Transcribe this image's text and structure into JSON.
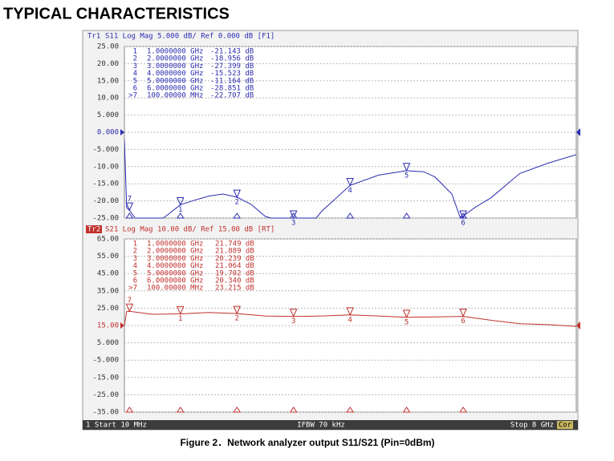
{
  "title": "TYPICAL CHARACTERISTICS",
  "caption": "Figure 2．Network analyzer output S11/S21 (Pin=0dBm)",
  "status": {
    "start": "1 Start 10 MHz",
    "ifbw": "IFBW 70 kHz",
    "stop": "Stop 8 GHz",
    "cor": "Cor"
  },
  "chart_data": [
    {
      "type": "line",
      "trace": "Tr1",
      "header": "S11 Log Mag 5.000 dB/ Ref 0.000 dB [F1]",
      "color": "#2b2bb0",
      "ref": 0,
      "xlim": [
        0.01,
        8
      ],
      "ylim": [
        -25,
        25
      ],
      "yticks": [
        {
          "value": 25,
          "label": "25.00"
        },
        {
          "value": 20,
          "label": "20.00"
        },
        {
          "value": 15,
          "label": "15.00"
        },
        {
          "value": 10,
          "label": "10.00"
        },
        {
          "value": 5,
          "label": "5.000"
        },
        {
          "value": 0,
          "label": "0.000"
        },
        {
          "value": -5,
          "label": "-5.000"
        },
        {
          "value": -10,
          "label": "-10.00"
        },
        {
          "value": -15,
          "label": "-15.00"
        },
        {
          "value": -20,
          "label": "-20.00"
        },
        {
          "value": -25,
          "label": "-25.00"
        }
      ],
      "x": [
        0.01,
        0.05,
        0.1,
        0.2,
        0.5,
        0.7,
        1.0,
        1.25,
        1.5,
        1.75,
        2.0,
        2.25,
        2.5,
        2.6,
        3.0,
        3.4,
        3.5,
        4.0,
        4.5,
        5.0,
        5.3,
        5.5,
        5.8,
        5.95,
        6.2,
        6.5,
        7.0,
        7.5,
        8.0
      ],
      "series": [
        {
          "values": [
            -2,
            -22,
            -22.7,
            -25,
            -25,
            -25,
            -21.1,
            -19.8,
            -18.6,
            -18,
            -18.9,
            -21,
            -24.5,
            -25,
            -25,
            -25,
            -23,
            -15.5,
            -12.5,
            -11.2,
            -11.5,
            -13,
            -18,
            -25,
            -22,
            -19,
            -12,
            -9,
            -6.5
          ]
        }
      ],
      "markers": {
        "names": [
          "1",
          "2",
          "3",
          "4",
          "5",
          "6",
          ">7"
        ],
        "tags": [
          "1",
          "2",
          "3",
          "4",
          "5",
          "6",
          "7"
        ],
        "x": [
          1,
          2,
          3,
          4,
          5,
          6,
          0.1
        ],
        "x_labels": [
          "1.0000000 GHz",
          "2.0000000 GHz",
          "3.0000000 GHz",
          "4.0000000 GHz",
          "5.0000000 GHz",
          "6.0000000 GHz",
          "100.00000 MHz"
        ],
        "values": [
          -21.143,
          -18.956,
          -27.399,
          -15.523,
          -11.164,
          -28.851,
          -22.707
        ],
        "value_labels": [
          "-21.143 dB",
          "-18.956 dB",
          "-27.399 dB",
          "-15.523 dB",
          "-11.164 dB",
          "-28.851 dB",
          "-22.707 dB"
        ]
      }
    },
    {
      "type": "line",
      "trace": "Tr2",
      "header": "S21 Log Mag 10.00 dB/ Ref 15.00 dB [RT]",
      "color": "#c0302c",
      "ref": 15,
      "xlim": [
        0.01,
        8
      ],
      "ylim": [
        -35,
        65
      ],
      "yticks": [
        {
          "value": 65,
          "label": "65.00"
        },
        {
          "value": 55,
          "label": "55.00"
        },
        {
          "value": 45,
          "label": "45.00"
        },
        {
          "value": 35,
          "label": "35.00"
        },
        {
          "value": 25,
          "label": "25.00"
        },
        {
          "value": 15,
          "label": "15.00"
        },
        {
          "value": 5,
          "label": "5.000"
        },
        {
          "value": -5,
          "label": "-5.000"
        },
        {
          "value": -15,
          "label": "-15.00"
        },
        {
          "value": -25,
          "label": "-25.00"
        },
        {
          "value": -35,
          "label": "-35.00"
        }
      ],
      "x": [
        0.01,
        0.05,
        0.1,
        0.5,
        1.0,
        1.5,
        2.0,
        2.5,
        3.0,
        3.5,
        4.0,
        4.5,
        5.0,
        5.5,
        6.0,
        6.5,
        7.0,
        7.5,
        8.0
      ],
      "series": [
        {
          "values": [
            15,
            23,
            23.2,
            21.5,
            21.7,
            22.5,
            21.9,
            20.5,
            20.2,
            20.5,
            21.1,
            20.5,
            19.7,
            20,
            20.3,
            18,
            16,
            15.5,
            14.5
          ]
        }
      ],
      "markers": {
        "names": [
          "1",
          "2",
          "3",
          "4",
          "5",
          "6",
          ">7"
        ],
        "tags": [
          "1",
          "2",
          "3",
          "4",
          "5",
          "6",
          "7"
        ],
        "x": [
          1,
          2,
          3,
          4,
          5,
          6,
          0.1
        ],
        "x_labels": [
          "1.0000000 GHz",
          "2.0000000 GHz",
          "3.0000000 GHz",
          "4.0000000 GHz",
          "5.0000000 GHz",
          "6.0000000 GHz",
          "100.00000 MHz"
        ],
        "values": [
          21.749,
          21.889,
          20.239,
          21.064,
          19.702,
          20.34,
          23.215
        ],
        "value_labels": [
          "21.749 dB",
          "21.889 dB",
          "20.239 dB",
          "21.064 dB",
          "19.702 dB",
          "20.340 dB",
          "23.215 dB"
        ]
      }
    }
  ]
}
